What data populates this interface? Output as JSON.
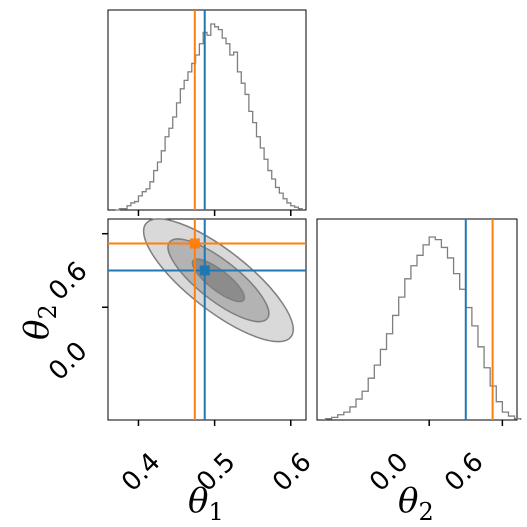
{
  "chart_data": {
    "type": "corner",
    "parameters": [
      "θ1",
      "θ2"
    ],
    "axis_labels": {
      "x_theta1": "θ",
      "x_theta1_sub": "1",
      "x_theta2": "θ",
      "x_theta2_sub": "2",
      "y_theta2": "θ",
      "y_theta2_sub": "2"
    },
    "tick_labels": {
      "theta1_bottom": [
        "0.4",
        "0.5",
        "0.6"
      ],
      "theta2_left": [
        "0.6",
        "0.0"
      ],
      "theta2_bottom": [
        "0.0",
        "0.6"
      ]
    },
    "ranges": {
      "theta1": [
        0.36,
        0.62
      ],
      "theta2": [
        -0.92,
        0.72
      ]
    },
    "truth_lines": [
      {
        "name": "blue",
        "color": "#1f77b4",
        "theta1": 0.487,
        "theta2": 0.3
      },
      {
        "name": "orange",
        "color": "#ff7f0e",
        "theta1": 0.474,
        "theta2": 0.52
      }
    ],
    "hist_theta1": {
      "bins": [
        0.37,
        0.375,
        0.38,
        0.385,
        0.39,
        0.395,
        0.4,
        0.405,
        0.41,
        0.415,
        0.42,
        0.425,
        0.43,
        0.435,
        0.44,
        0.445,
        0.45,
        0.455,
        0.46,
        0.465,
        0.47,
        0.475,
        0.48,
        0.485,
        0.49,
        0.495,
        0.5,
        0.505,
        0.51,
        0.515,
        0.52,
        0.525,
        0.53,
        0.535,
        0.54,
        0.545,
        0.55,
        0.555,
        0.56,
        0.565,
        0.57,
        0.575,
        0.58,
        0.585,
        0.59,
        0.595,
        0.6,
        0.605,
        0.61
      ],
      "counts": [
        0,
        1,
        1,
        3,
        5,
        6,
        10,
        13,
        15,
        20,
        28,
        34,
        42,
        52,
        58,
        66,
        76,
        86,
        92,
        98,
        104,
        110,
        118,
        126,
        124,
        132,
        130,
        128,
        122,
        118,
        110,
        112,
        98,
        90,
        82,
        70,
        62,
        52,
        44,
        36,
        28,
        22,
        16,
        12,
        8,
        5,
        3,
        2,
        1
      ]
    },
    "hist_theta2": {
      "bins": [
        -0.85,
        -0.8,
        -0.75,
        -0.7,
        -0.65,
        -0.6,
        -0.55,
        -0.5,
        -0.45,
        -0.4,
        -0.35,
        -0.3,
        -0.25,
        -0.2,
        -0.15,
        -0.1,
        -0.05,
        0.0,
        0.05,
        0.1,
        0.15,
        0.2,
        0.25,
        0.3,
        0.35,
        0.4,
        0.45,
        0.5,
        0.55,
        0.6,
        0.65,
        0.7
      ],
      "counts": [
        1,
        2,
        4,
        6,
        10,
        16,
        22,
        32,
        42,
        54,
        66,
        80,
        94,
        108,
        118,
        126,
        134,
        140,
        138,
        132,
        124,
        112,
        100,
        86,
        72,
        56,
        40,
        26,
        14,
        6,
        3,
        1
      ]
    },
    "contours_2d": {
      "center": [
        0.505,
        0.22
      ],
      "levels": [
        "outer",
        "middle",
        "inner"
      ]
    }
  }
}
